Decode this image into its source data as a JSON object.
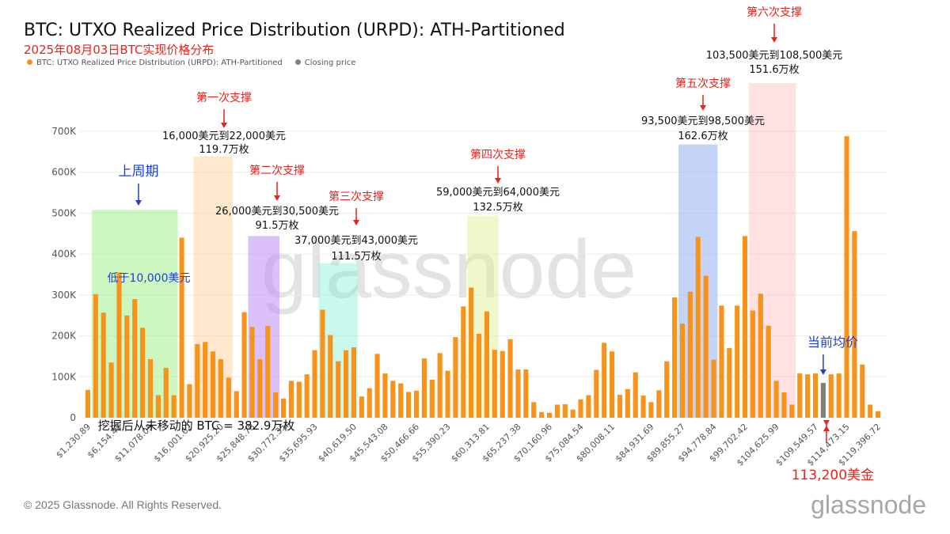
{
  "header": {
    "title": "BTC: UTXO Realized Price Distribution (URPD): ATH-Partitioned",
    "subtitle": "2025年08月03日BTC实现价格分布"
  },
  "legend": [
    {
      "label": "BTC: UTXO Realized Price Distribution (URPD): ATH-Partitioned",
      "color": "#f7931a"
    },
    {
      "label": "Closing price",
      "color": "#808080"
    }
  ],
  "footer": {
    "copyright": "© 2025 Glassnode. All Rights Reserved.",
    "brand": "glassnode"
  },
  "watermark": "glassnode",
  "colors": {
    "bar": "#f7931a",
    "closing": "#808080",
    "annot_red": "#e6231c",
    "annot_blue": "#1f3fcf"
  },
  "chart_data": {
    "type": "bar",
    "ylim": [
      0,
      700000
    ],
    "yticks": [
      0,
      100000,
      200000,
      300000,
      400000,
      500000,
      600000,
      700000
    ],
    "ytick_labels": [
      "0",
      "100K",
      "200K",
      "300K",
      "400K",
      "500K",
      "600K",
      "700K"
    ],
    "xtick_labels": [
      "$1,230.89",
      "$6,154.47",
      "$11,078.05",
      "$16,001.62",
      "$20,925.20",
      "$25,848.78",
      "$30,772.35",
      "$35,695.93",
      "$40,619.50",
      "$45,543.08",
      "$50,466.66",
      "$55,390.23",
      "$60,313.81",
      "$65,237.38",
      "$70,160.96",
      "$75,084.54",
      "$80,008.11",
      "$84,931.69",
      "$89,855.27",
      "$94,778.84",
      "$99,702.42",
      "$104,625.99",
      "$109,549.57",
      "$114,473.15",
      "$119,396.72"
    ],
    "closing_index": 94,
    "values": [
      68000,
      302000,
      257000,
      135000,
      355000,
      250000,
      290000,
      220000,
      143000,
      55000,
      122000,
      55000,
      440000,
      82000,
      180000,
      185000,
      162000,
      143000,
      98000,
      65000,
      258000,
      222000,
      143000,
      224000,
      62000,
      47000,
      90000,
      88000,
      106000,
      165000,
      264000,
      202000,
      138000,
      165000,
      172000,
      52000,
      72000,
      156000,
      108000,
      90000,
      84000,
      63000,
      66000,
      145000,
      93000,
      158000,
      115000,
      197000,
      272000,
      318000,
      205000,
      260000,
      166000,
      163000,
      192000,
      118000,
      118000,
      38000,
      14000,
      12000,
      32000,
      33000,
      20000,
      45000,
      55000,
      117000,
      183000,
      162000,
      56000,
      70000,
      111000,
      54000,
      38000,
      67000,
      138000,
      294000,
      230000,
      308000,
      442000,
      347000,
      142000,
      274000,
      170000,
      274000,
      444000,
      262000,
      303000,
      225000,
      90000,
      62000,
      32000,
      108000,
      106000,
      108000,
      85000,
      106000,
      108000,
      688000,
      456000,
      130000,
      32000,
      16000
    ],
    "annotations": {
      "zones": [
        {
          "label": "上周期",
          "detail": "低于10,000美元"
        },
        {
          "label": "第一次支撑",
          "range": "16,000美元到22,000美元",
          "amount": "119.7万枚"
        },
        {
          "label": "第二次支撑",
          "range": "26,000美元到30,500美元",
          "amount": "91.5万枚"
        },
        {
          "label": "第三次支撑",
          "range": "37,000美元到43,000美元",
          "amount": "111.5万枚"
        },
        {
          "label": "第四次支撑",
          "range": "59,000美元到64,000美元",
          "amount": "132.5万枚"
        },
        {
          "label": "第五次支撑",
          "range": "93,500美元到98,500美元",
          "amount": "162.6万枚"
        },
        {
          "label": "第六次支撑",
          "range": "103,500美元到108,500美元",
          "amount": "151.6万枚"
        }
      ],
      "current_avg_label": "当前均价",
      "closing_price_label": "113,200美金",
      "unmoved_note": "挖掘后从未移动的 BTC = 382.9万枚"
    }
  }
}
